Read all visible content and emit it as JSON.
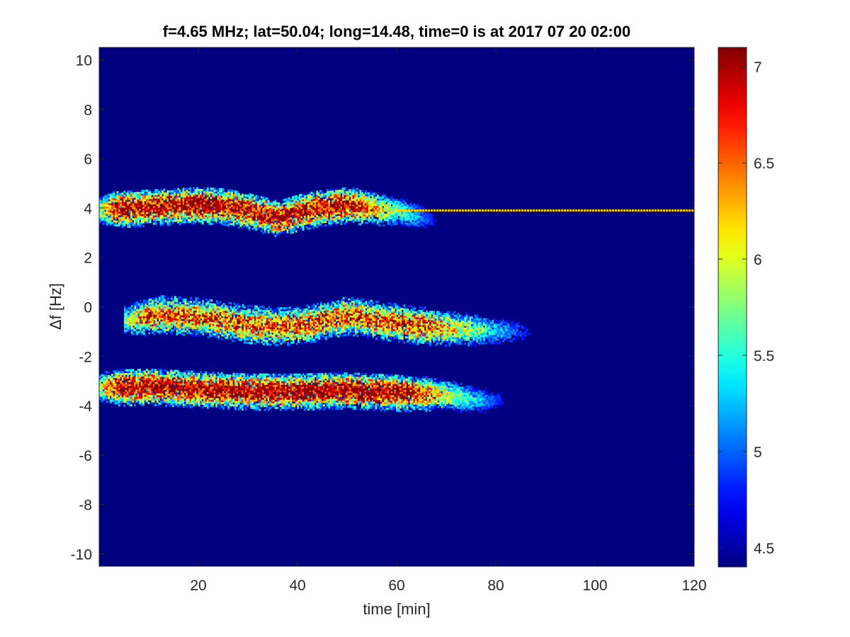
{
  "chart_data": {
    "type": "heatmap",
    "title": "f=4.65 MHz;  lat=50.04; long=14.48, time=0 is at 2017 07 20 02:00",
    "xlabel": "time [min]",
    "ylabel": "Δf [Hz]",
    "xlim": [
      0,
      120
    ],
    "ylim": [
      -10.5,
      10.5
    ],
    "xticks": [
      20,
      40,
      60,
      80,
      100,
      120
    ],
    "yticks": [
      10,
      8,
      6,
      4,
      2,
      0,
      -2,
      -4,
      -6,
      -8,
      -10
    ],
    "colorbar": {
      "colormap": "jet",
      "clim": [
        4.4,
        7.1
      ],
      "ticks": [
        7,
        6.5,
        6,
        5.5,
        5,
        4.5
      ]
    },
    "background_value": 4.4,
    "bands": [
      {
        "description": "upper echo trace ending in a steady carrier line",
        "center_hz": 4.0,
        "start_min": 0,
        "end_min": 70,
        "peak_value": 7.0,
        "centerline": [
          [
            0,
            3.9
          ],
          [
            10,
            4.0
          ],
          [
            20,
            4.1
          ],
          [
            25,
            4.05
          ],
          [
            30,
            3.85
          ],
          [
            36,
            3.55
          ],
          [
            40,
            3.8
          ],
          [
            45,
            4.0
          ],
          [
            50,
            4.1
          ],
          [
            55,
            3.95
          ],
          [
            60,
            3.85
          ],
          [
            65,
            3.6
          ],
          [
            70,
            3.35
          ]
        ],
        "carrier_line": {
          "freq_hz": 3.9,
          "start_min": 60,
          "end_min": 120,
          "value": 6.2
        }
      },
      {
        "description": "middle echo trace",
        "center_hz": -0.6,
        "start_min": 5,
        "end_min": 90,
        "peak_value": 6.6,
        "centerline": [
          [
            5,
            -0.6
          ],
          [
            12,
            -0.35
          ],
          [
            20,
            -0.45
          ],
          [
            30,
            -0.75
          ],
          [
            37,
            -0.85
          ],
          [
            43,
            -0.7
          ],
          [
            50,
            -0.4
          ],
          [
            55,
            -0.55
          ],
          [
            62,
            -0.75
          ],
          [
            70,
            -0.9
          ],
          [
            80,
            -1.0
          ],
          [
            90,
            -1.1
          ]
        ]
      },
      {
        "description": "lower echo trace",
        "center_hz": -3.5,
        "start_min": 0,
        "end_min": 84,
        "peak_value": 7.1,
        "centerline": [
          [
            0,
            -3.3
          ],
          [
            10,
            -3.25
          ],
          [
            20,
            -3.35
          ],
          [
            30,
            -3.45
          ],
          [
            40,
            -3.45
          ],
          [
            50,
            -3.4
          ],
          [
            60,
            -3.5
          ],
          [
            70,
            -3.6
          ],
          [
            78,
            -3.85
          ],
          [
            84,
            -3.75
          ]
        ]
      }
    ]
  }
}
